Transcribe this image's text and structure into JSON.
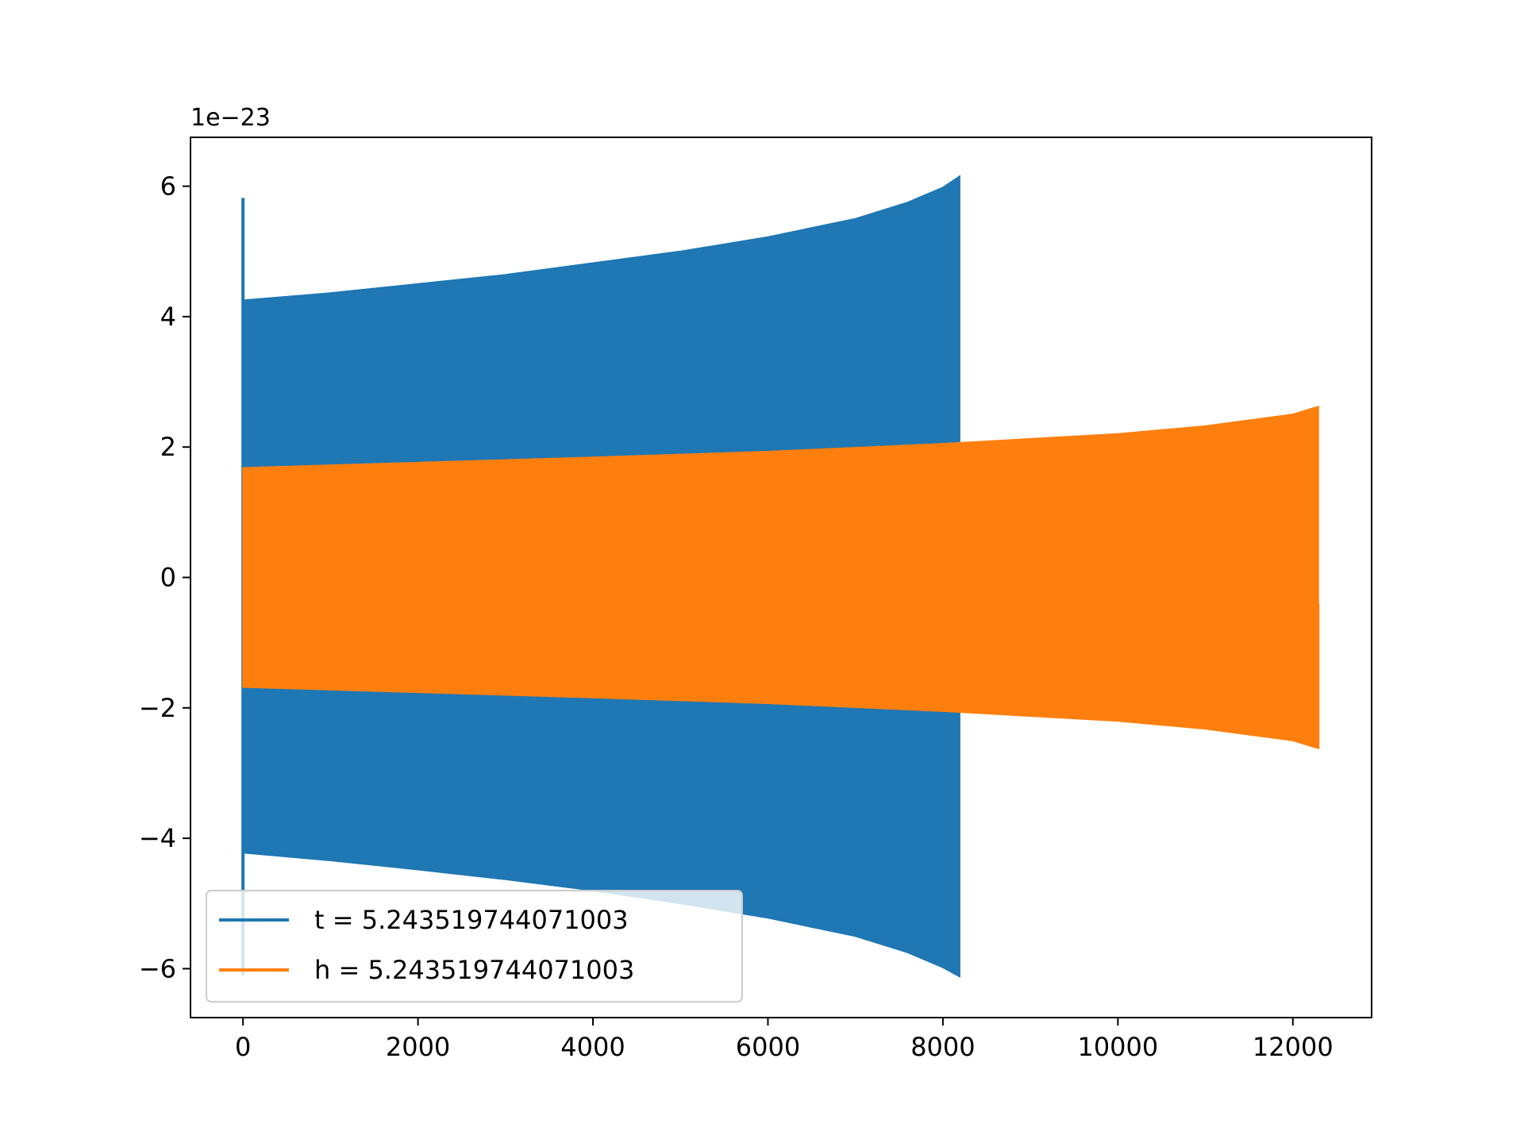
{
  "chart_data": {
    "type": "line",
    "offset_text": "1e−23",
    "xlim": [
      -600,
      12900
    ],
    "ylim": [
      -6.75,
      6.75
    ],
    "x_ticks": [
      {
        "value": 0,
        "label": "0"
      },
      {
        "value": 2000,
        "label": "2000"
      },
      {
        "value": 4000,
        "label": "4000"
      },
      {
        "value": 6000,
        "label": "6000"
      },
      {
        "value": 8000,
        "label": "8000"
      },
      {
        "value": 10000,
        "label": "10000"
      },
      {
        "value": 12000,
        "label": "12000"
      }
    ],
    "y_ticks": [
      {
        "value": -6,
        "label": "−6"
      },
      {
        "value": -4,
        "label": "−4"
      },
      {
        "value": -2,
        "label": "−2"
      },
      {
        "value": 0,
        "label": "0"
      },
      {
        "value": 2,
        "label": "2"
      },
      {
        "value": 4,
        "label": "4"
      },
      {
        "value": 6,
        "label": "6"
      }
    ],
    "legend_position": "lower-left",
    "series": [
      {
        "name": "t = 5.243519744071003",
        "color": "#1f77b4",
        "kind": "oscillating-envelope",
        "spike": {
          "x": 0,
          "max": 5.82,
          "min": -6.1
        },
        "envelope": {
          "x": [
            0,
            1000,
            2000,
            3000,
            4000,
            5000,
            6000,
            7000,
            7600,
            8000,
            8190
          ],
          "upper": [
            4.25,
            4.36,
            4.5,
            4.64,
            4.82,
            5.0,
            5.22,
            5.5,
            5.75,
            5.98,
            6.15
          ],
          "lower": [
            -4.22,
            -4.34,
            -4.48,
            -4.63,
            -4.8,
            -5.0,
            -5.22,
            -5.5,
            -5.75,
            -5.98,
            -6.12
          ]
        }
      },
      {
        "name": "h = 5.243519744071003",
        "color": "#ff7f0e",
        "kind": "oscillating-envelope",
        "envelope": {
          "x": [
            0,
            2000,
            4000,
            6000,
            8000,
            10000,
            11000,
            12000,
            12290
          ],
          "upper": [
            1.68,
            1.76,
            1.84,
            1.93,
            2.05,
            2.2,
            2.32,
            2.5,
            2.62
          ],
          "lower": [
            -1.68,
            -1.76,
            -1.84,
            -1.93,
            -2.05,
            -2.2,
            -2.32,
            -2.5,
            -2.62
          ]
        },
        "end_tail": {
          "x": 12290,
          "value": -0.4
        }
      }
    ]
  }
}
